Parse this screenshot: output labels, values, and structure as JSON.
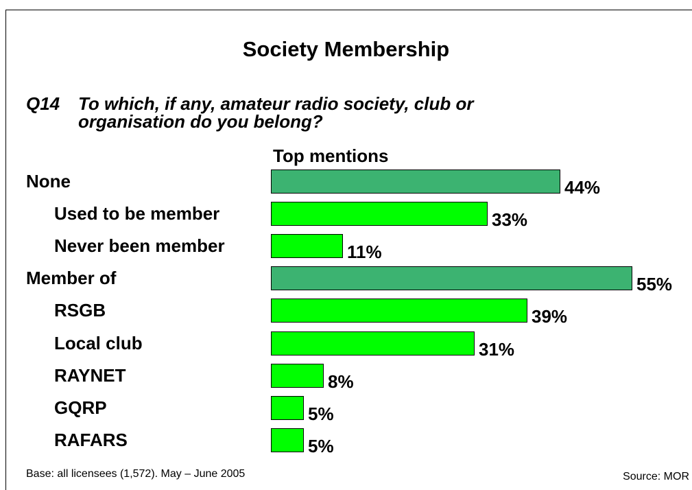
{
  "title": "Society Membership",
  "question": {
    "number": "Q14",
    "line1": "To which, if any, amateur radio society, club or",
    "line2": "organisation do you belong?"
  },
  "subheading": "Top mentions",
  "footer": {
    "base": "Base: all licensees (1,572).  May – June 2005",
    "source": "Source: MOR"
  },
  "colors": {
    "parent_bar": "#3cb371",
    "child_bar": "#00ff00"
  },
  "chart_data": {
    "type": "bar",
    "orientation": "horizontal",
    "unit": "%",
    "xlim": [
      0,
      55
    ],
    "categories": [
      "None",
      "Used to be member",
      "Never been member",
      "Member of",
      "RSGB",
      "Local club",
      "RAYNET",
      "GQRP",
      "RAFARS"
    ],
    "values": [
      44,
      33,
      11,
      55,
      39,
      31,
      8,
      5,
      5
    ],
    "value_labels": [
      "44%",
      "33%",
      "11%",
      "55%",
      "39%",
      "31%",
      "8%",
      "5%",
      "5%"
    ],
    "levels": [
      "parent",
      "child",
      "child",
      "parent",
      "child",
      "child",
      "child",
      "child",
      "child"
    ]
  }
}
